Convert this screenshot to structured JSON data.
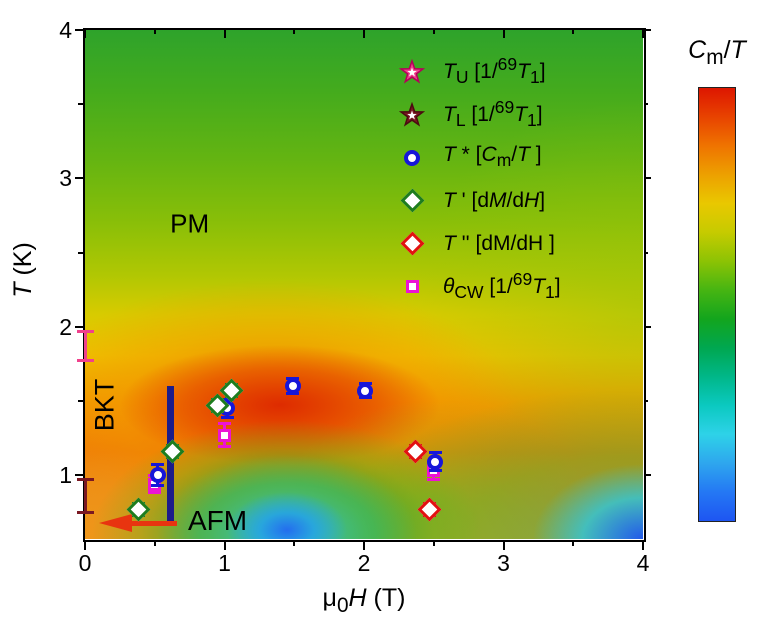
{
  "figure": {
    "xlabel_html": "μ<sub>0</sub><i>H</i> (T)",
    "ylabel_html": "<i>T</i> (K)",
    "colorbar_label_html": "<i>C</i><sub>m</sub>/<i>T</i>"
  },
  "chart_data": {
    "type": "heatmap+scatter",
    "xlabel": "mu0_H (T)",
    "ylabel": "T (K)",
    "colorbar_label": "Cm/T",
    "xlim": [
      0,
      4
    ],
    "ylim": [
      0.57,
      4
    ],
    "x_ticks": [
      0,
      1,
      2,
      3,
      4
    ],
    "x_tick_labels": [
      "0",
      "1",
      "2",
      "3",
      "4"
    ],
    "x_minor_ticks": [
      0.5,
      1.5,
      2.5,
      3.5
    ],
    "y_ticks": [
      1,
      2,
      3,
      4
    ],
    "y_tick_labels": [
      "1",
      "2",
      "3",
      "4"
    ],
    "y_minor_ticks": [
      1.5,
      2.5,
      3.5
    ],
    "grid": false,
    "legend_position": "upper right inside",
    "colormap_stops": [
      "#dd1600",
      "#e84300",
      "#ef7300",
      "#eda000",
      "#e9c800",
      "#c6cb00",
      "#8cc304",
      "#46b512",
      "#13a51d",
      "#00a750",
      "#00b789",
      "#0bc9c0",
      "#2ed2e8",
      "#2ea6ee",
      "#2478f4",
      "#1e55f2"
    ],
    "series": [
      {
        "name": "T_U",
        "label_html": "<i>T</i><sub>U</sub> [1/<sup>69</sup><i>T</i><sub>1</sub>]",
        "marker": "star",
        "color": "#f0418c",
        "stroke": "#b4005a",
        "z": 6,
        "points": [
          {
            "x": 0,
            "y": 1.87,
            "err": 0.11
          }
        ]
      },
      {
        "name": "T_L",
        "label_html": "<i>T</i><sub>L</sub> [1/<sup>69</sup><i>T</i><sub>1</sub>]",
        "marker": "star",
        "color": "#7a1822",
        "stroke": "#4a0c10",
        "z": 5,
        "points": [
          {
            "x": 0,
            "y": 0.86,
            "err": 0.12
          }
        ]
      },
      {
        "name": "T*",
        "label_html": "<i>T</i> * [<i>C</i><sub>m</sub>/<i>T</i> ]",
        "marker": "circle",
        "color": "#1616d9",
        "stroke": "#1616d9",
        "z": 2,
        "points": [
          {
            "x": 0.52,
            "y": 1.0,
            "err": 0.08
          },
          {
            "x": 1.02,
            "y": 1.45,
            "err": 0.07
          },
          {
            "x": 1.49,
            "y": 1.6,
            "err": 0.06
          },
          {
            "x": 2.01,
            "y": 1.57,
            "err": 0.06
          },
          {
            "x": 2.51,
            "y": 1.09,
            "err": 0.07
          }
        ]
      },
      {
        "name": "T'",
        "label_html": "<i>T</i> ' [d<i>M</i>/d<i>H</i>]",
        "marker": "diamond",
        "color": "#1e7d1e",
        "stroke": "#1e7d1e",
        "z": 3,
        "points": [
          {
            "x": 0.38,
            "y": 0.77,
            "err": 0.05
          },
          {
            "x": 0.63,
            "y": 1.16,
            "err": 0.05
          },
          {
            "x": 0.95,
            "y": 1.47,
            "err": 0.05
          },
          {
            "x": 1.05,
            "y": 1.57,
            "err": 0.05
          }
        ]
      },
      {
        "name": "T''",
        "label_html": "<i>T</i> '' [dM/dH ]",
        "marker": "diamond",
        "color": "#e21111",
        "stroke": "#e21111",
        "z": 4,
        "points": [
          {
            "x": 2.37,
            "y": 1.16,
            "err": 0.05
          },
          {
            "x": 2.47,
            "y": 0.77,
            "err": 0.05
          }
        ]
      },
      {
        "name": "theta_CW",
        "label_html": "<i>θ</i><sub>CW</sub> [1/<sup>69</sup><i>T</i><sub>1</sub>]",
        "marker": "square",
        "color": "#ec13d4",
        "stroke": "#ec13d4",
        "z": 1,
        "points": [
          {
            "x": 0.5,
            "y": 0.94,
            "err": 0.07
          },
          {
            "x": 1.0,
            "y": 1.27,
            "err": 0.09
          },
          {
            "x": 2.5,
            "y": 1.03,
            "err": 0.07
          }
        ]
      }
    ],
    "annotations": [
      {
        "id": "pm",
        "text": "PM",
        "x": 0.75,
        "y": 2.69,
        "rotate": 0,
        "font_px": 26
      },
      {
        "id": "bkt",
        "text": "BKT",
        "x": 0.14,
        "y": 1.47,
        "rotate": -90,
        "font_px": 27
      },
      {
        "id": "afm",
        "text": "AFM",
        "x": 0.95,
        "y": 0.69,
        "rotate": 0,
        "font_px": 28
      }
    ],
    "bkt_bar": {
      "x": 0,
      "t_low": 0.89,
      "t_high": 1.8,
      "color": "#1c1c8a"
    },
    "afm_arrow": {
      "t": 0.677,
      "h_tail": 0.66,
      "h_tip": 0.1,
      "color": "#e83410"
    }
  }
}
